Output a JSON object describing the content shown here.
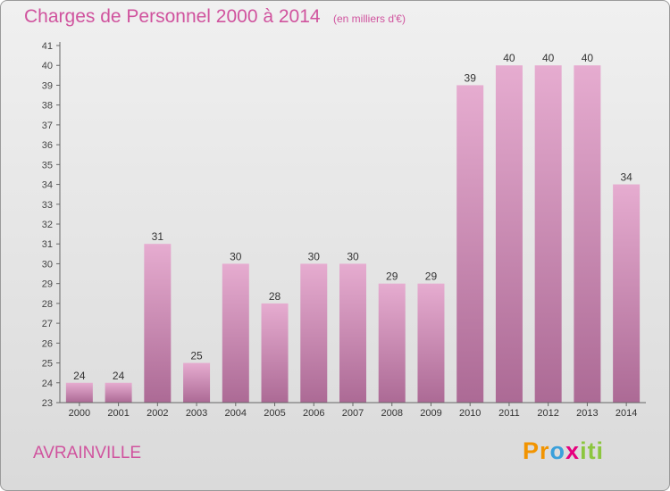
{
  "chart_data": {
    "type": "bar",
    "title": "Charges de Personnel 2000 à 2014",
    "unit_note": "(en milliers d'€)",
    "categories": [
      "2000",
      "2001",
      "2002",
      "2003",
      "2004",
      "2005",
      "2006",
      "2007",
      "2008",
      "2009",
      "2010",
      "2011",
      "2012",
      "2013",
      "2014"
    ],
    "values": [
      24,
      24,
      31,
      25,
      30,
      28,
      30,
      30,
      29,
      29,
      39,
      40,
      40,
      40,
      34
    ],
    "ylim": [
      23,
      41
    ],
    "yticks": [
      23,
      24,
      25,
      26,
      27,
      28,
      29,
      30,
      31,
      32,
      33,
      34,
      35,
      36,
      37,
      38,
      39,
      40,
      41
    ],
    "xlabel": "",
    "ylabel": "",
    "grid": false
  },
  "footer": {
    "place": "AVRAINVILLE",
    "logo_parts": [
      "Pr",
      "o",
      "x",
      "iti"
    ]
  },
  "colors": {
    "accent": "#d0539e",
    "bar_top": "#e6acd0",
    "bar_bottom": "#ac6a95"
  }
}
